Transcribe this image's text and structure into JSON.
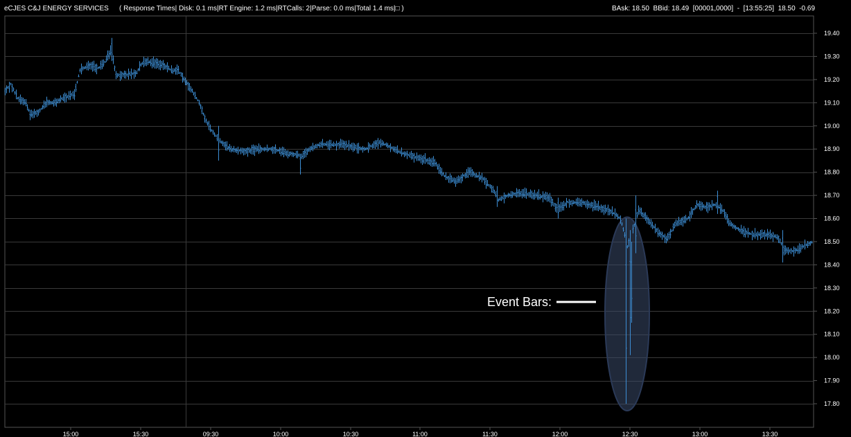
{
  "header": {
    "title": "eCJES C&J ENERGY SERVICES",
    "perf": "( Response Times| Disk: 0.1 ms|RT Engine: 1.2 ms|RTCalls: 2|Parse: 0.0 ms|Total 1.4 ms|□ )",
    "quote": "BAsk: 18.50  BBid: 18.49  [00001,0000]  -  [13:55:25]  18.50  -0.69"
  },
  "colors": {
    "background": "#000000",
    "bar": "#3d8fd6",
    "grid": "#3a3a3a",
    "frame": "#555555",
    "highlight_fill": "#3a4a6a",
    "text": "#ffffff"
  },
  "chart_data": {
    "type": "bar",
    "style": "ohlc-bars",
    "x_axis": {
      "labels": [
        "15:00",
        "15:30",
        "09:30",
        "10:00",
        "10:30",
        "11:00",
        "11:30",
        "12:00",
        "12:30",
        "13:00",
        "13:30"
      ]
    },
    "y_axis": {
      "range": [
        17.75,
        19.45
      ],
      "ticks": [
        "19.40",
        "19.30",
        "19.20",
        "19.10",
        "19.00",
        "18.90",
        "18.80",
        "18.70",
        "18.60",
        "18.50",
        "18.40",
        "18.30",
        "18.20",
        "18.10",
        "18.00",
        "17.90",
        "17.80"
      ],
      "position": "right"
    },
    "grid": true,
    "session_break_after": "15:30",
    "anchors": [
      {
        "t": 0,
        "v": 19.15
      },
      {
        "t": 8,
        "v": 19.18
      },
      {
        "t": 18,
        "v": 19.12
      },
      {
        "t": 30,
        "v": 19.1
      },
      {
        "t": 36,
        "v": 19.05
      },
      {
        "t": 48,
        "v": 19.06
      },
      {
        "t": 60,
        "v": 19.1
      },
      {
        "t": 72,
        "v": 19.1
      },
      {
        "t": 84,
        "v": 19.12
      },
      {
        "t": 100,
        "v": 19.14
      },
      {
        "t": 108,
        "v": 19.24
      },
      {
        "t": 120,
        "v": 19.26
      },
      {
        "t": 135,
        "v": 19.25
      },
      {
        "t": 145,
        "v": 19.28
      },
      {
        "t": 153,
        "v": 19.33
      },
      {
        "t": 160,
        "v": 19.22
      },
      {
        "t": 175,
        "v": 19.22
      },
      {
        "t": 190,
        "v": 19.23
      },
      {
        "t": 197,
        "v": 19.27
      },
      {
        "t": 205,
        "v": 19.28
      },
      {
        "t": 218,
        "v": 19.27
      },
      {
        "t": 230,
        "v": 19.26
      },
      {
        "t": 240,
        "v": 19.24
      },
      {
        "t": 250,
        "v": 19.24
      },
      {
        "t": 258,
        "v": 19.2
      },
      {
        "t": 268,
        "v": 19.16
      },
      {
        "t": 280,
        "v": 19.1
      },
      {
        "t": 290,
        "v": 19.02
      },
      {
        "t": 300,
        "v": 18.97
      },
      {
        "t": 312,
        "v": 18.93
      },
      {
        "t": 325,
        "v": 18.9
      },
      {
        "t": 345,
        "v": 18.89
      },
      {
        "t": 365,
        "v": 18.9
      },
      {
        "t": 385,
        "v": 18.9
      },
      {
        "t": 410,
        "v": 18.88
      },
      {
        "t": 428,
        "v": 18.87
      },
      {
        "t": 440,
        "v": 18.9
      },
      {
        "t": 455,
        "v": 18.92
      },
      {
        "t": 470,
        "v": 18.92
      },
      {
        "t": 485,
        "v": 18.92
      },
      {
        "t": 500,
        "v": 18.91
      },
      {
        "t": 520,
        "v": 18.9
      },
      {
        "t": 540,
        "v": 18.93
      },
      {
        "t": 555,
        "v": 18.91
      },
      {
        "t": 575,
        "v": 18.88
      },
      {
        "t": 598,
        "v": 18.86
      },
      {
        "t": 620,
        "v": 18.84
      },
      {
        "t": 635,
        "v": 18.78
      },
      {
        "t": 650,
        "v": 18.76
      },
      {
        "t": 670,
        "v": 18.8
      },
      {
        "t": 690,
        "v": 18.77
      },
      {
        "t": 705,
        "v": 18.72
      },
      {
        "t": 712,
        "v": 18.68
      },
      {
        "t": 725,
        "v": 18.7
      },
      {
        "t": 745,
        "v": 18.71
      },
      {
        "t": 765,
        "v": 18.7
      },
      {
        "t": 785,
        "v": 18.69
      },
      {
        "t": 797,
        "v": 18.64
      },
      {
        "t": 812,
        "v": 18.67
      },
      {
        "t": 830,
        "v": 18.67
      },
      {
        "t": 855,
        "v": 18.65
      },
      {
        "t": 875,
        "v": 18.63
      },
      {
        "t": 888,
        "v": 18.6
      },
      {
        "t": 898,
        "v": 18.48
      },
      {
        "t": 906,
        "v": 18.55
      },
      {
        "t": 914,
        "v": 18.64
      },
      {
        "t": 925,
        "v": 18.6
      },
      {
        "t": 940,
        "v": 18.55
      },
      {
        "t": 955,
        "v": 18.51
      },
      {
        "t": 968,
        "v": 18.58
      },
      {
        "t": 985,
        "v": 18.6
      },
      {
        "t": 998,
        "v": 18.66
      },
      {
        "t": 1010,
        "v": 18.65
      },
      {
        "t": 1025,
        "v": 18.66
      },
      {
        "t": 1035,
        "v": 18.64
      },
      {
        "t": 1045,
        "v": 18.58
      },
      {
        "t": 1060,
        "v": 18.55
      },
      {
        "t": 1080,
        "v": 18.53
      },
      {
        "t": 1100,
        "v": 18.53
      },
      {
        "t": 1115,
        "v": 18.52
      },
      {
        "t": 1125,
        "v": 18.46
      },
      {
        "t": 1140,
        "v": 18.46
      },
      {
        "t": 1152,
        "v": 18.48
      },
      {
        "t": 1165,
        "v": 18.5
      }
    ],
    "spikes": [
      {
        "t": 155,
        "h": 19.38,
        "l": 19.28
      },
      {
        "t": 309,
        "h": 19.0,
        "l": 18.85
      },
      {
        "t": 427,
        "h": 18.88,
        "l": 18.79
      },
      {
        "t": 711,
        "h": 18.74,
        "l": 18.65
      },
      {
        "t": 799,
        "h": 18.69,
        "l": 18.6
      },
      {
        "t": 897,
        "h": 18.6,
        "l": 17.8
      },
      {
        "t": 902,
        "h": 18.55,
        "l": 18.01
      },
      {
        "t": 905,
        "h": 18.5,
        "l": 18.15
      },
      {
        "t": 911,
        "h": 18.7,
        "l": 18.45
      },
      {
        "t": 1028,
        "h": 18.72,
        "l": 18.62
      },
      {
        "t": 1123,
        "h": 18.55,
        "l": 18.41
      }
    ],
    "annotation": {
      "text": "Event Bars:",
      "t": 898,
      "low": 17.8,
      "high": 18.6
    }
  }
}
